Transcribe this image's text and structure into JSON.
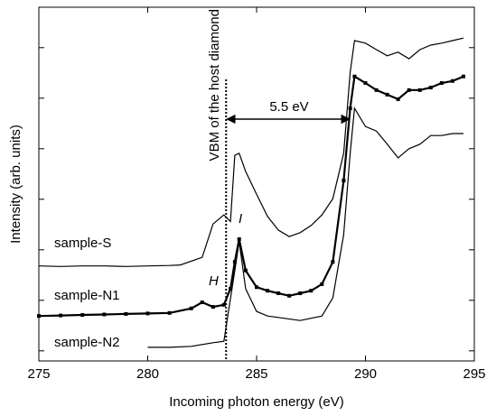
{
  "chart_data": {
    "type": "line",
    "xlabel": "Incoming photon energy (eV)",
    "ylabel": "Intensity (arb. units)",
    "xlim": [
      275,
      295
    ],
    "xticks": [
      275,
      280,
      285,
      290,
      295
    ],
    "ylim": [
      -0.2,
      6.8
    ],
    "yticks": [
      0,
      1,
      2,
      3,
      4,
      5,
      6
    ],
    "ytick_labels": false,
    "series": [
      {
        "name": "sample-S",
        "color": "#000000",
        "marker": "none",
        "x": [
          275,
          276,
          277,
          278,
          279,
          280,
          281,
          281.5,
          282.5,
          283,
          283.5,
          283.8,
          284,
          284.2,
          284.5,
          285,
          285.5,
          286,
          286.5,
          287,
          287.5,
          288,
          288.5,
          289,
          289.3,
          289.5,
          290,
          290.5,
          291,
          291.5,
          292,
          292.5,
          293,
          293.5,
          294,
          294.5
        ],
        "values": [
          1.68,
          1.67,
          1.68,
          1.68,
          1.67,
          1.68,
          1.69,
          1.7,
          1.85,
          2.51,
          2.69,
          2.56,
          3.87,
          3.91,
          3.55,
          3.1,
          2.66,
          2.39,
          2.26,
          2.34,
          2.48,
          2.69,
          3.01,
          3.91,
          5.51,
          6.14,
          6.09,
          5.96,
          5.84,
          5.91,
          5.78,
          5.96,
          6.05,
          6.09,
          6.14,
          6.19
        ]
      },
      {
        "name": "sample-N1",
        "color": "#000000",
        "marker": "square",
        "x": [
          275,
          276,
          277,
          278,
          279,
          280,
          281,
          282,
          282.5,
          283,
          283.5,
          283.8,
          284,
          284.2,
          284.5,
          285,
          285.5,
          286,
          286.5,
          287,
          287.5,
          288,
          288.5,
          289,
          289.3,
          289.5,
          290,
          290.5,
          291,
          291.5,
          292,
          292.5,
          293,
          293.5,
          294,
          294.5
        ],
        "values": [
          0.69,
          0.7,
          0.71,
          0.72,
          0.73,
          0.74,
          0.75,
          0.84,
          0.96,
          0.87,
          0.91,
          1.23,
          1.76,
          2.21,
          1.59,
          1.26,
          1.19,
          1.14,
          1.09,
          1.14,
          1.19,
          1.32,
          1.76,
          3.37,
          4.8,
          5.43,
          5.3,
          5.16,
          5.07,
          4.98,
          5.16,
          5.16,
          5.21,
          5.3,
          5.34,
          5.43
        ]
      },
      {
        "name": "sample-N2",
        "color": "#000000",
        "marker": "none",
        "x": [
          280,
          281,
          282,
          283,
          283.5,
          284,
          284.2,
          284.5,
          285,
          285.5,
          286,
          287,
          288,
          288.5,
          289,
          289.3,
          289.5,
          290,
          290.5,
          291,
          291.5,
          292,
          292.5,
          293,
          293.5,
          294,
          294.5
        ],
        "values": [
          0.07,
          0.07,
          0.09,
          0.16,
          0.19,
          1.59,
          2.16,
          1.23,
          0.78,
          0.69,
          0.66,
          0.6,
          0.69,
          1.05,
          2.3,
          3.91,
          4.8,
          4.44,
          4.35,
          4.09,
          3.82,
          4.0,
          4.09,
          4.26,
          4.26,
          4.3,
          4.3
        ]
      }
    ],
    "vbm_x": 283.6,
    "vbm_label": "VBM of the host diamond",
    "gap_label": "5.5 eV",
    "peak_labels": [
      "H",
      "I"
    ]
  }
}
